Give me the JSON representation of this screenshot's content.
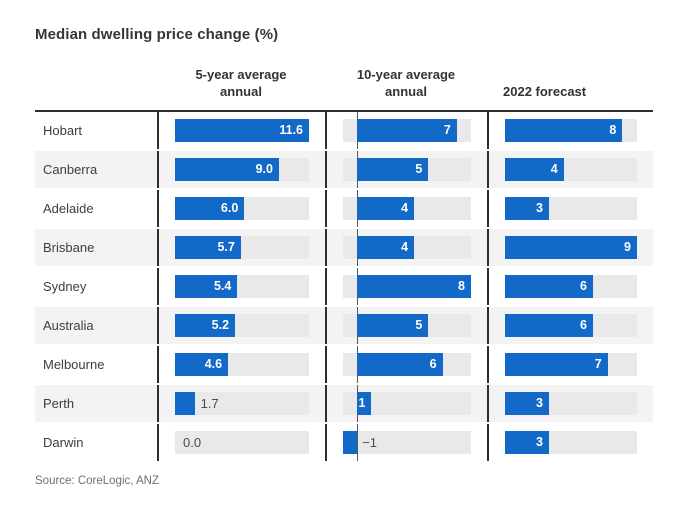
{
  "chart_data": {
    "type": "bar",
    "title": "Median dwelling price change (%)",
    "source": "Source: CoreLogic, ANZ",
    "layout": "three-column horizontal bar table, zebra-striped rows, dark column rules",
    "categories": [
      "Hobart",
      "Canberra",
      "Adelaide",
      "Brisbane",
      "Sydney",
      "Australia",
      "Melbourne",
      "Perth",
      "Darwin"
    ],
    "series": [
      {
        "name": "5-year average annual",
        "values": [
          11.6,
          9.0,
          6.0,
          5.7,
          5.4,
          5.2,
          4.6,
          1.7,
          0.0
        ],
        "labels": [
          "11.6",
          "9.0",
          "6.0",
          "5.7",
          "5.4",
          "5.2",
          "4.6",
          "1.7",
          "0.0"
        ],
        "range": [
          0,
          11.6
        ]
      },
      {
        "name": "10-year average annual",
        "values": [
          7,
          5,
          4,
          4,
          8,
          5,
          6,
          1,
          -1
        ],
        "labels": [
          "7",
          "5",
          "4",
          "4",
          "8",
          "5",
          "6",
          "1",
          "−1"
        ],
        "range": [
          -1,
          8
        ]
      },
      {
        "name": "2022 forecast",
        "values": [
          8,
          4,
          3,
          9,
          6,
          6,
          7,
          3,
          3
        ],
        "labels": [
          "8",
          "4",
          "3",
          "9",
          "6",
          "6",
          "7",
          "3",
          "3"
        ],
        "range": [
          0,
          9
        ]
      }
    ],
    "colors": {
      "bar_blue": "#1269c7",
      "track_gray": "#e9e9e9",
      "stripe_gray": "#f3f3f3",
      "rule_dark": "#2e2e2e",
      "title_text": "#363636",
      "label_text": "#3d3d3d",
      "outside_value_text": "#4a4a4a",
      "source_text": "#6f6f6f"
    }
  }
}
